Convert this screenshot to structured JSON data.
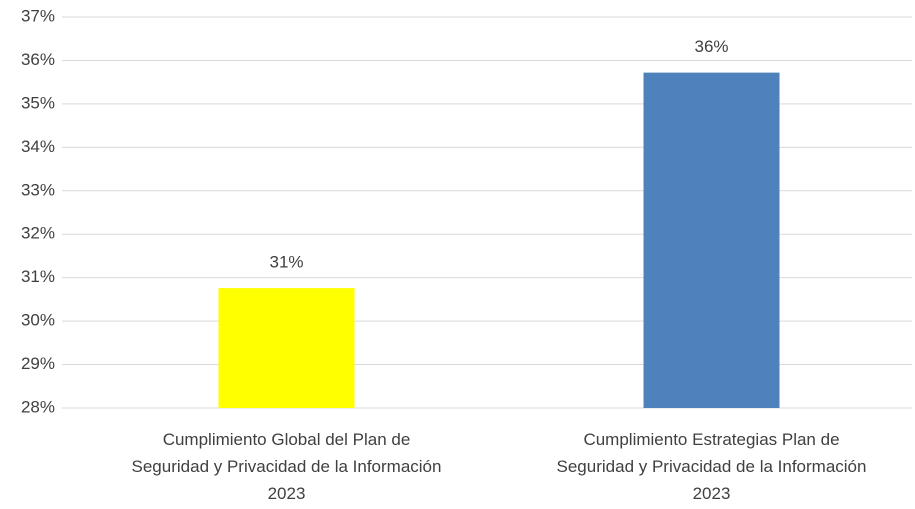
{
  "chart_data": {
    "type": "bar",
    "categories": [
      "Cumplimiento Global del  Plan de\nSeguridad y Privacidad de la Información\n2023",
      "Cumplimiento Estrategias  Plan de\nSeguridad y Privacidad de la Información\n2023"
    ],
    "values": [
      30.76,
      35.72
    ],
    "value_labels": [
      "31%",
      "36%"
    ],
    "colors": [
      "#ffff00",
      "#4f81bd"
    ],
    "ylim": [
      28,
      37
    ],
    "yticks": [
      {
        "value": 28,
        "label": "28%"
      },
      {
        "value": 29,
        "label": "29%"
      },
      {
        "value": 30,
        "label": "30%"
      },
      {
        "value": 31,
        "label": "31%"
      },
      {
        "value": 32,
        "label": "32%"
      },
      {
        "value": 33,
        "label": "33%"
      },
      {
        "value": 34,
        "label": "34%"
      },
      {
        "value": 35,
        "label": "35%"
      },
      {
        "value": 36,
        "label": "36%"
      },
      {
        "value": 37,
        "label": "37%"
      }
    ],
    "grid": true
  }
}
